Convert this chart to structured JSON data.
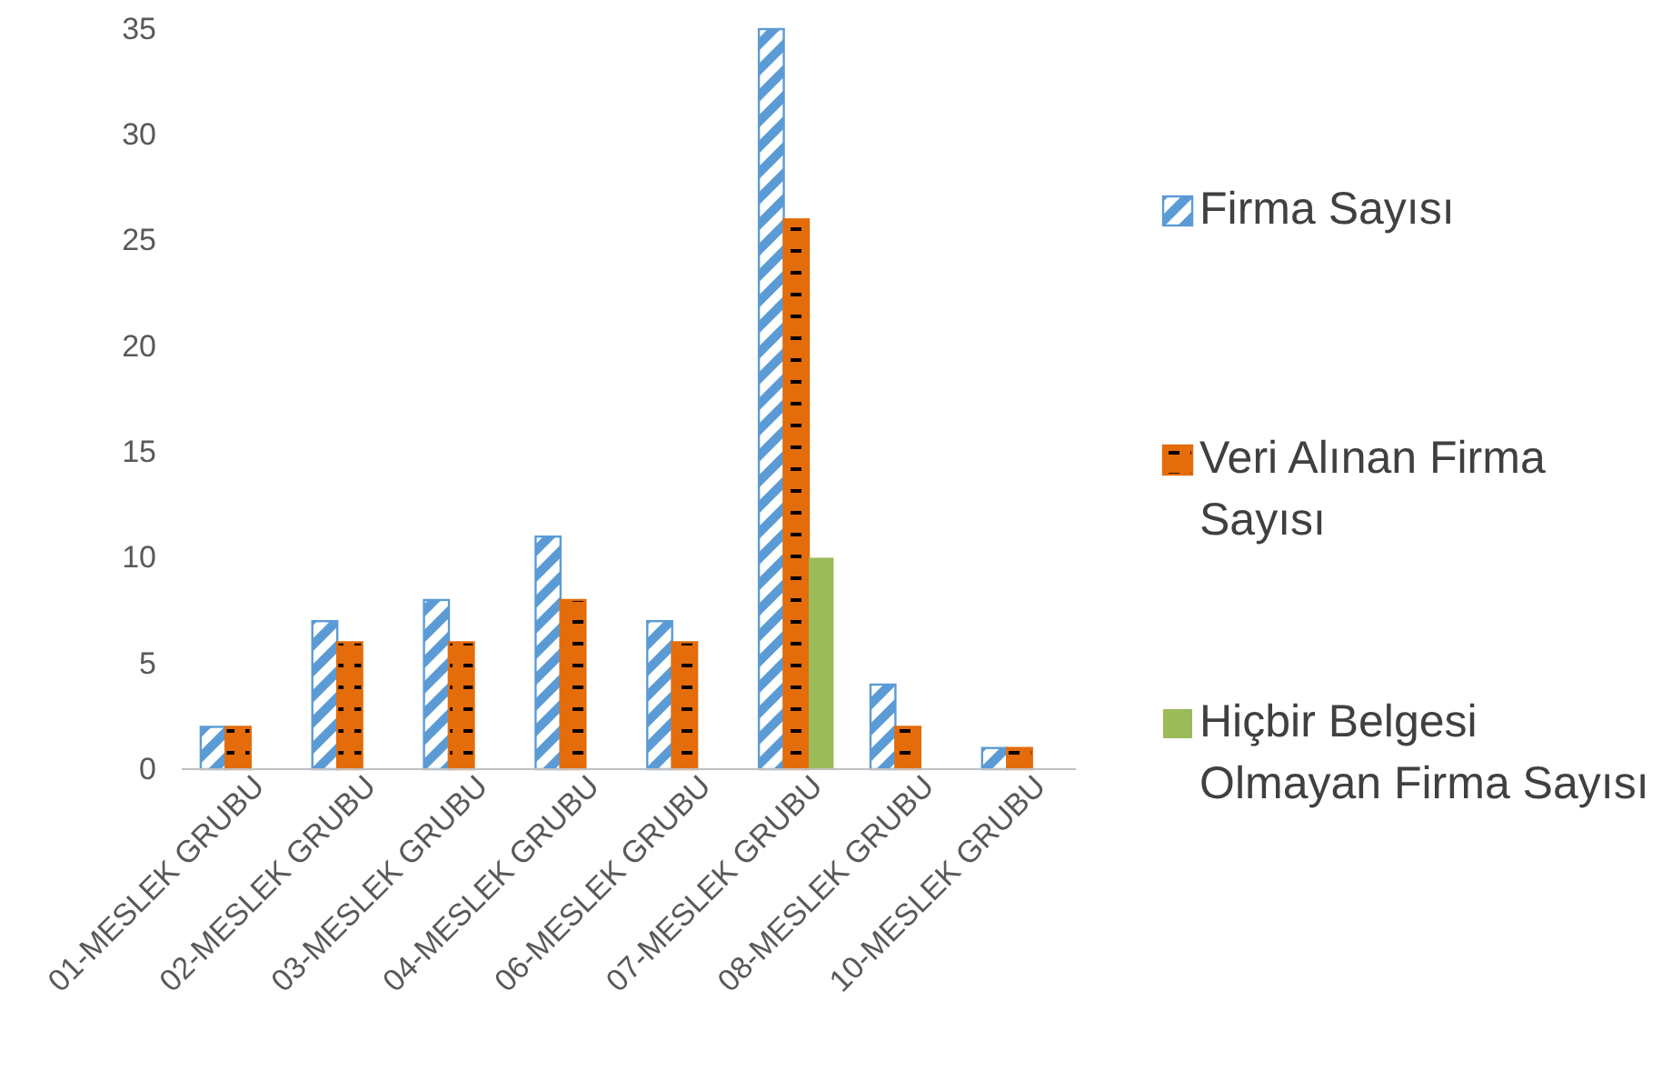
{
  "chart_data": {
    "type": "bar",
    "categories": [
      "01-MESLEK GRUBU",
      "02-MESLEK GRUBU",
      "03-MESLEK GRUBU",
      "04-MESLEK GRUBU",
      "06-MESLEK GRUBU",
      "07-MESLEK GRUBU",
      "08-MESLEK GRUBU",
      "10-MESLEK GRUBU"
    ],
    "series": [
      {
        "name": "Firma Sayısı",
        "color": "#5b9bd5",
        "values": [
          2,
          7,
          8,
          11,
          7,
          35,
          4,
          1
        ]
      },
      {
        "name": "Veri Alınan Firma Sayısı",
        "color": "#e46c0a",
        "values": [
          2,
          6,
          6,
          8,
          6,
          26,
          2,
          1
        ]
      },
      {
        "name": "Hiçbir Belgesi Olmayan Firma Sayısı",
        "color": "#9bbb59",
        "values": [
          null,
          null,
          null,
          null,
          null,
          10,
          null,
          null
        ]
      }
    ],
    "ylim": [
      0,
      35
    ],
    "yticks": [
      0,
      5,
      10,
      15,
      20,
      25,
      30,
      35
    ],
    "grid": false,
    "legend": "right"
  }
}
